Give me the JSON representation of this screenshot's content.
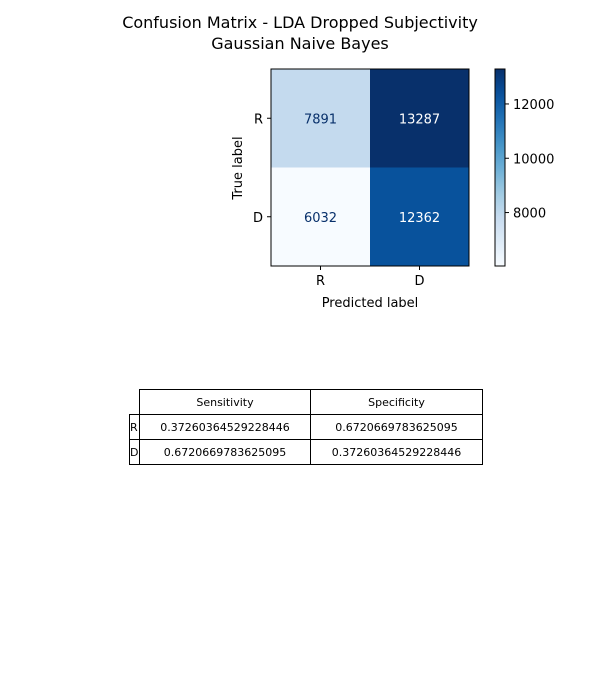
{
  "chart_data": [
    {
      "type": "heatmap",
      "title": "Confusion Matrix - LDA Dropped Subjectivity",
      "subtitle": "Gaussian Naive Bayes",
      "xlabel": "Predicted label",
      "ylabel": "True label",
      "x_categories": [
        "R",
        "D"
      ],
      "y_categories": [
        "R",
        "D"
      ],
      "values": [
        [
          7891,
          13287
        ],
        [
          6032,
          12362
        ]
      ],
      "colormap": "Blues",
      "colorbar": {
        "ticks": [
          8000,
          10000,
          12000
        ],
        "tick_labels": [
          "8000",
          "10000",
          "12000"
        ]
      },
      "grid": false
    },
    {
      "type": "table",
      "columns": [
        "Sensitivity",
        "Specificity"
      ],
      "rows": [
        {
          "label": "R",
          "values": [
            "0.37260364529228446",
            "0.6720669783625095"
          ]
        },
        {
          "label": "D",
          "values": [
            "0.6720669783625095",
            "0.37260364529228446"
          ]
        }
      ]
    }
  ],
  "colors": {
    "low": "#f7fbff",
    "high": "#08306b",
    "text_dark": "#08306b",
    "text_light": "#ffffff"
  }
}
